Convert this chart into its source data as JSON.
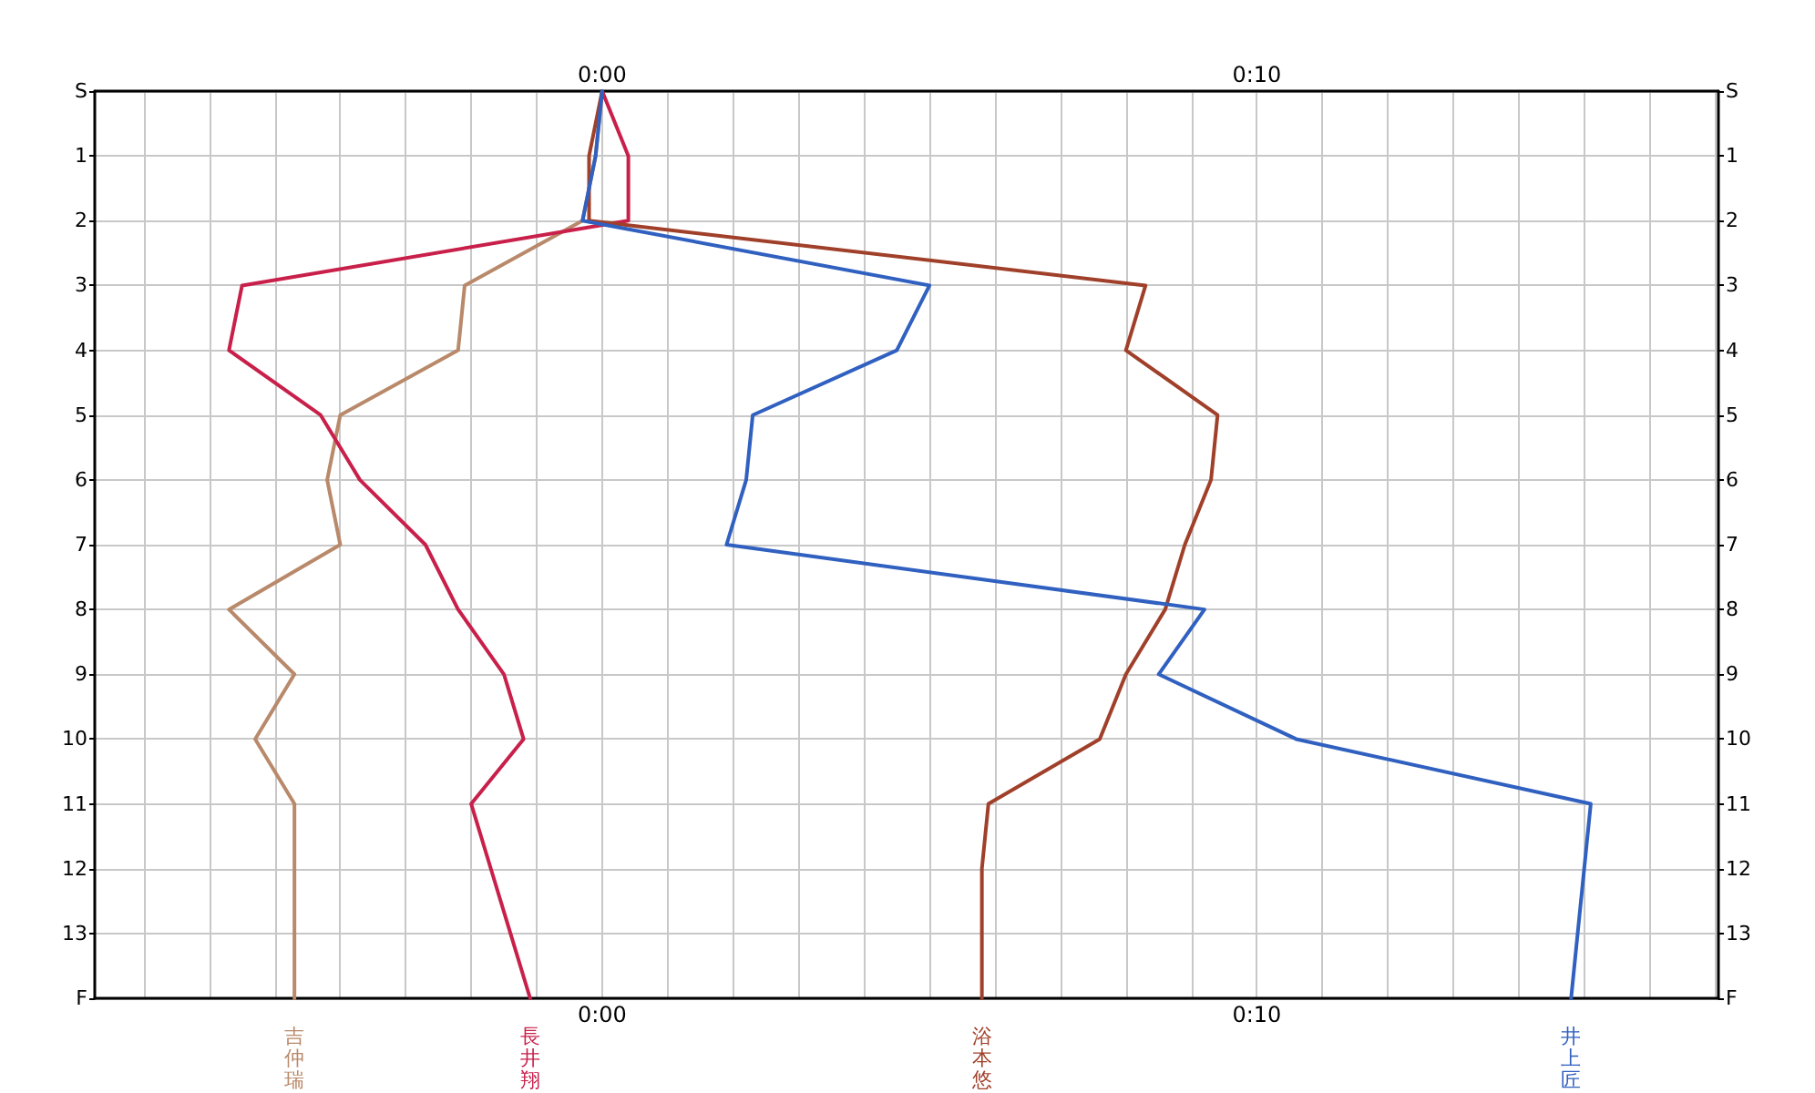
{
  "chart_data": {
    "type": "line",
    "orientation": "horizontal",
    "legend": false,
    "grid": true,
    "marker": "none",
    "line_style": "solid",
    "categories": [
      "S",
      "1",
      "2",
      "3",
      "4",
      "5",
      "6",
      "7",
      "8",
      "9",
      "10",
      "11",
      "12",
      "13",
      "F"
    ],
    "xlim": [
      -7.75,
      17.05
    ],
    "xticks": [
      {
        "value": -7,
        "label": null
      },
      {
        "value": -6,
        "label": null
      },
      {
        "value": -5,
        "label": null
      },
      {
        "value": -4,
        "label": null
      },
      {
        "value": -3,
        "label": null
      },
      {
        "value": -2,
        "label": null
      },
      {
        "value": -1,
        "label": null
      },
      {
        "value": 0,
        "label": "0:00"
      },
      {
        "value": 1,
        "label": null
      },
      {
        "value": 2,
        "label": null
      },
      {
        "value": 3,
        "label": null
      },
      {
        "value": 4,
        "label": null
      },
      {
        "value": 5,
        "label": null
      },
      {
        "value": 6,
        "label": null
      },
      {
        "value": 7,
        "label": null
      },
      {
        "value": 8,
        "label": null
      },
      {
        "value": 9,
        "label": null
      },
      {
        "value": 10,
        "label": "0:10"
      },
      {
        "value": 11,
        "label": null
      },
      {
        "value": 12,
        "label": null
      },
      {
        "value": 13,
        "label": null
      },
      {
        "value": 14,
        "label": null
      },
      {
        "value": 15,
        "label": null
      },
      {
        "value": 16,
        "label": null
      },
      {
        "value": 17,
        "label": null
      }
    ],
    "x2lim": [
      -7.75,
      17.05
    ],
    "x2ticks": [
      {
        "value": -7,
        "label": null
      },
      {
        "value": -6,
        "label": null
      },
      {
        "value": -5,
        "label": null
      },
      {
        "value": -4,
        "label": null
      },
      {
        "value": -3,
        "label": null
      },
      {
        "value": -2,
        "label": null
      },
      {
        "value": -1,
        "label": null
      },
      {
        "value": 0,
        "label": "0:00"
      },
      {
        "value": 1,
        "label": null
      },
      {
        "value": 2,
        "label": null
      },
      {
        "value": 3,
        "label": null
      },
      {
        "value": 4,
        "label": null
      },
      {
        "value": 5,
        "label": null
      },
      {
        "value": 6,
        "label": null
      },
      {
        "value": 7,
        "label": null
      },
      {
        "value": 8,
        "label": null
      },
      {
        "value": 9,
        "label": null
      },
      {
        "value": 10,
        "label": "0:10"
      },
      {
        "value": 11,
        "label": null
      },
      {
        "value": 12,
        "label": null
      },
      {
        "value": 13,
        "label": null
      },
      {
        "value": 14,
        "label": null
      },
      {
        "value": 15,
        "label": null
      },
      {
        "value": 16,
        "label": null
      },
      {
        "value": 17,
        "label": null
      }
    ],
    "series": [
      {
        "name": "吉仲瑞",
        "color": "#b8896a",
        "values": [
          0,
          -0.1,
          -0.3,
          -2.1,
          -2.2,
          -4.0,
          -4.2,
          -4.0,
          -5.7,
          -4.7,
          -5.3,
          -4.7,
          -4.7,
          -4.7,
          -4.7
        ]
      },
      {
        "name": "長井翔",
        "color": "#c8204a",
        "values": [
          0,
          0.4,
          0.4,
          -5.5,
          -5.7,
          -4.3,
          -3.7,
          -2.7,
          -2.2,
          -1.5,
          -1.2,
          -2.0,
          -1.7,
          -1.4,
          -1.1
        ]
      },
      {
        "name": "浴本悠",
        "color": "#a0402a",
        "values": [
          0,
          -0.2,
          -0.2,
          8.3,
          8.0,
          9.4,
          9.3,
          8.9,
          8.6,
          8.0,
          7.6,
          5.9,
          5.8,
          5.8,
          5.8
        ]
      },
      {
        "name": "井上匠",
        "color": "#3060c0",
        "values": [
          0,
          -0.1,
          -0.3,
          5.0,
          4.5,
          2.3,
          2.2,
          1.9,
          9.2,
          8.5,
          10.6,
          15.1,
          15.0,
          14.9,
          14.8
        ]
      }
    ]
  }
}
